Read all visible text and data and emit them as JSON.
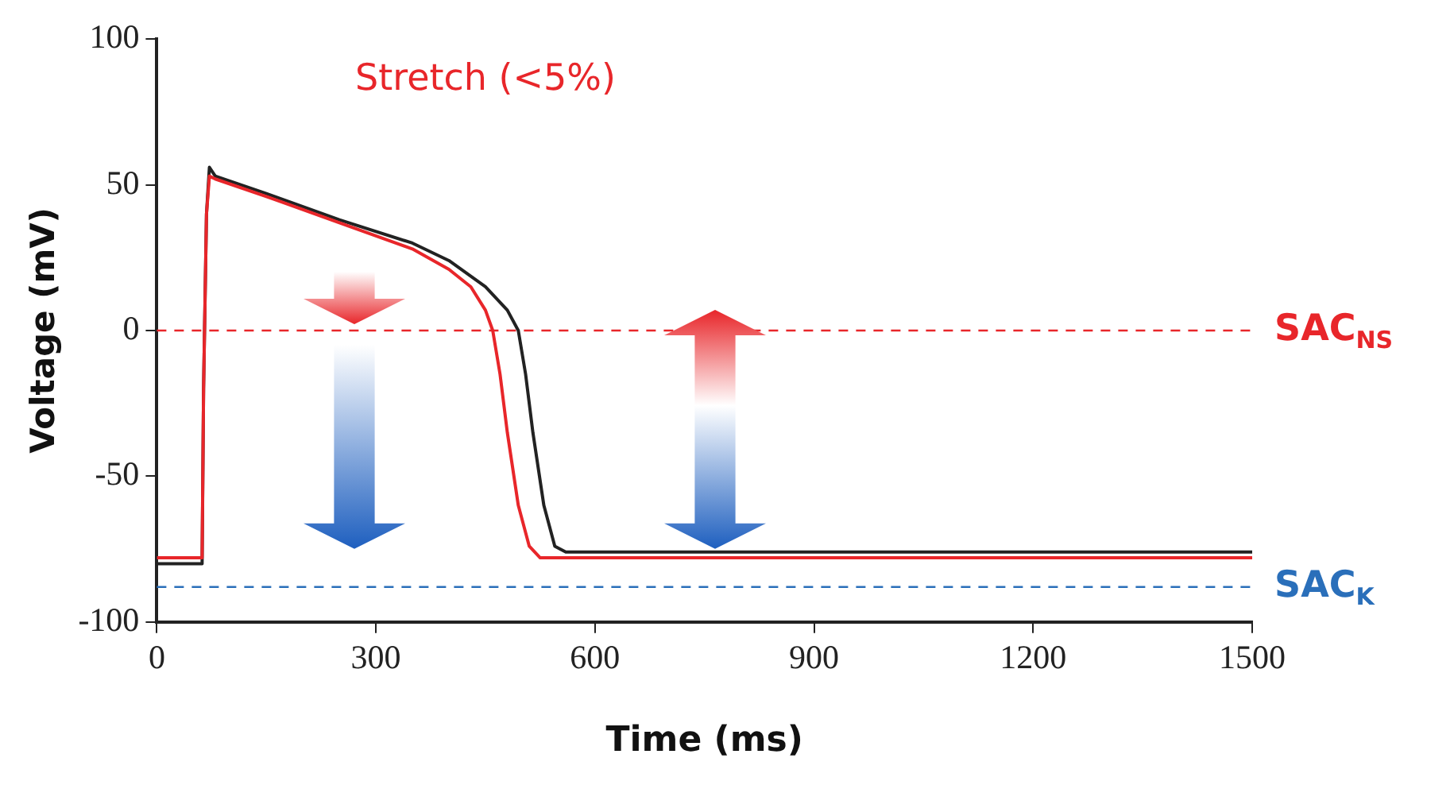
{
  "chart_data": {
    "type": "line",
    "title": "Stretch (<5%)",
    "xlabel": "Time (ms)",
    "ylabel": "Voltage (mV)",
    "xlim": [
      0,
      1500
    ],
    "xticks": [
      0,
      300,
      600,
      900,
      1200,
      1500
    ],
    "ylim": [
      -100,
      100
    ],
    "yticks": [
      -100,
      -50,
      0,
      50,
      100
    ],
    "grid": false,
    "legend": false,
    "marker": "none",
    "line_style": "solid",
    "series": [
      {
        "color": "#e8262a",
        "x": [
          0,
          62,
          64,
          68,
          72,
          80,
          150,
          250,
          350,
          400,
          430,
          450,
          460,
          470,
          480,
          495,
          510,
          525,
          700,
          1000,
          1500
        ],
        "values": [
          -78,
          -78,
          -20,
          40,
          53,
          52,
          46,
          37,
          28,
          21,
          15,
          7,
          0,
          -15,
          -35,
          -60,
          -74,
          -78,
          -78,
          -78,
          -78
        ]
      },
      {
        "color": "#222222",
        "x": [
          0,
          62,
          64,
          68,
          72,
          80,
          150,
          250,
          350,
          400,
          450,
          480,
          495,
          505,
          515,
          530,
          545,
          560,
          800,
          1100,
          1500
        ],
        "values": [
          -80,
          -80,
          -20,
          40,
          56,
          53,
          47,
          38,
          30,
          24,
          15,
          7,
          0,
          -15,
          -35,
          -60,
          -74,
          -76,
          -76,
          -76,
          -76
        ]
      }
    ],
    "ref_lines": [
      {
        "axis": "y",
        "value": 0,
        "label": "SAC$_{NS}$",
        "color": "#e8262a",
        "line_style": "dashed"
      },
      {
        "axis": "y",
        "value": -88,
        "label": "SAC$_{K}$",
        "color": "#2a6fba",
        "line_style": "dashed"
      }
    ]
  }
}
